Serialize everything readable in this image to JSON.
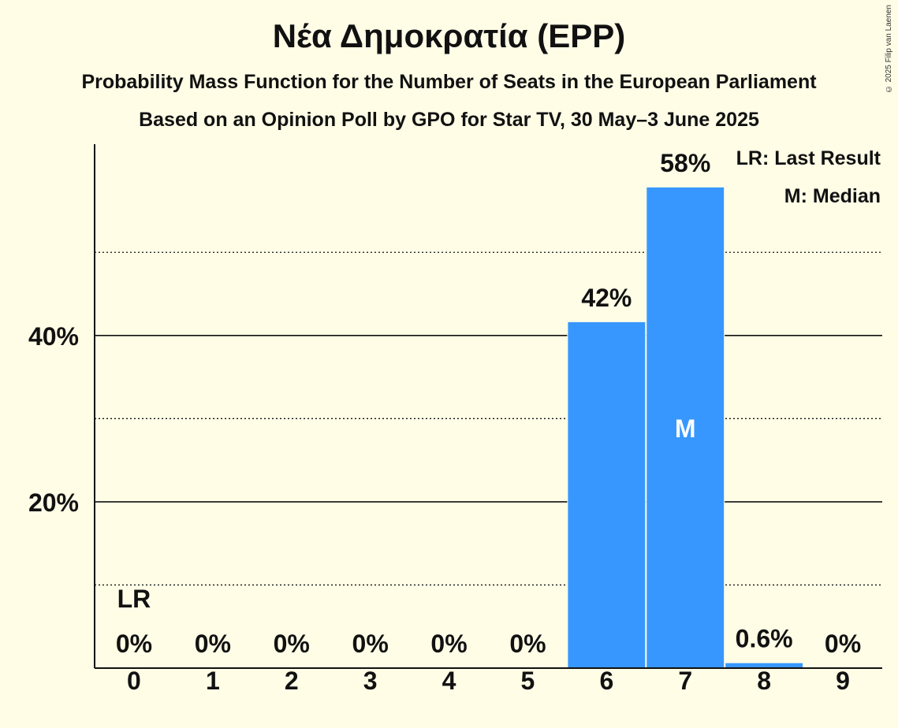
{
  "title": "Νέα Δημοκρατία (EPP)",
  "subtitle1": "Probability Mass Function for the Number of Seats in the European Parliament",
  "subtitle2": "Based on an Opinion Poll by GPO for Star TV, 30 May–3 June 2025",
  "copyright": "© 2025 Filip van Laenen",
  "legend": {
    "lr": "LR: Last Result",
    "m": "M: Median"
  },
  "chart_data": {
    "type": "bar",
    "categories": [
      "0",
      "1",
      "2",
      "3",
      "4",
      "5",
      "6",
      "7",
      "8",
      "9"
    ],
    "values": [
      0,
      0,
      0,
      0,
      0,
      0,
      41.6,
      57.8,
      0.6,
      0
    ],
    "labels": [
      "0%",
      "0%",
      "0%",
      "0%",
      "0%",
      "0%",
      "42%",
      "58%",
      "0.6%",
      "0%"
    ],
    "ylim": [
      0,
      63
    ],
    "yticks": [
      {
        "value": 20,
        "label": "20%"
      },
      {
        "value": 40,
        "label": "40%"
      }
    ],
    "minor_gridlines": [
      10,
      30,
      50
    ],
    "last_result_index": 0,
    "last_result_marker": "LR",
    "median_index": 7,
    "median_marker": "M",
    "bar_color": "#3797ff"
  }
}
